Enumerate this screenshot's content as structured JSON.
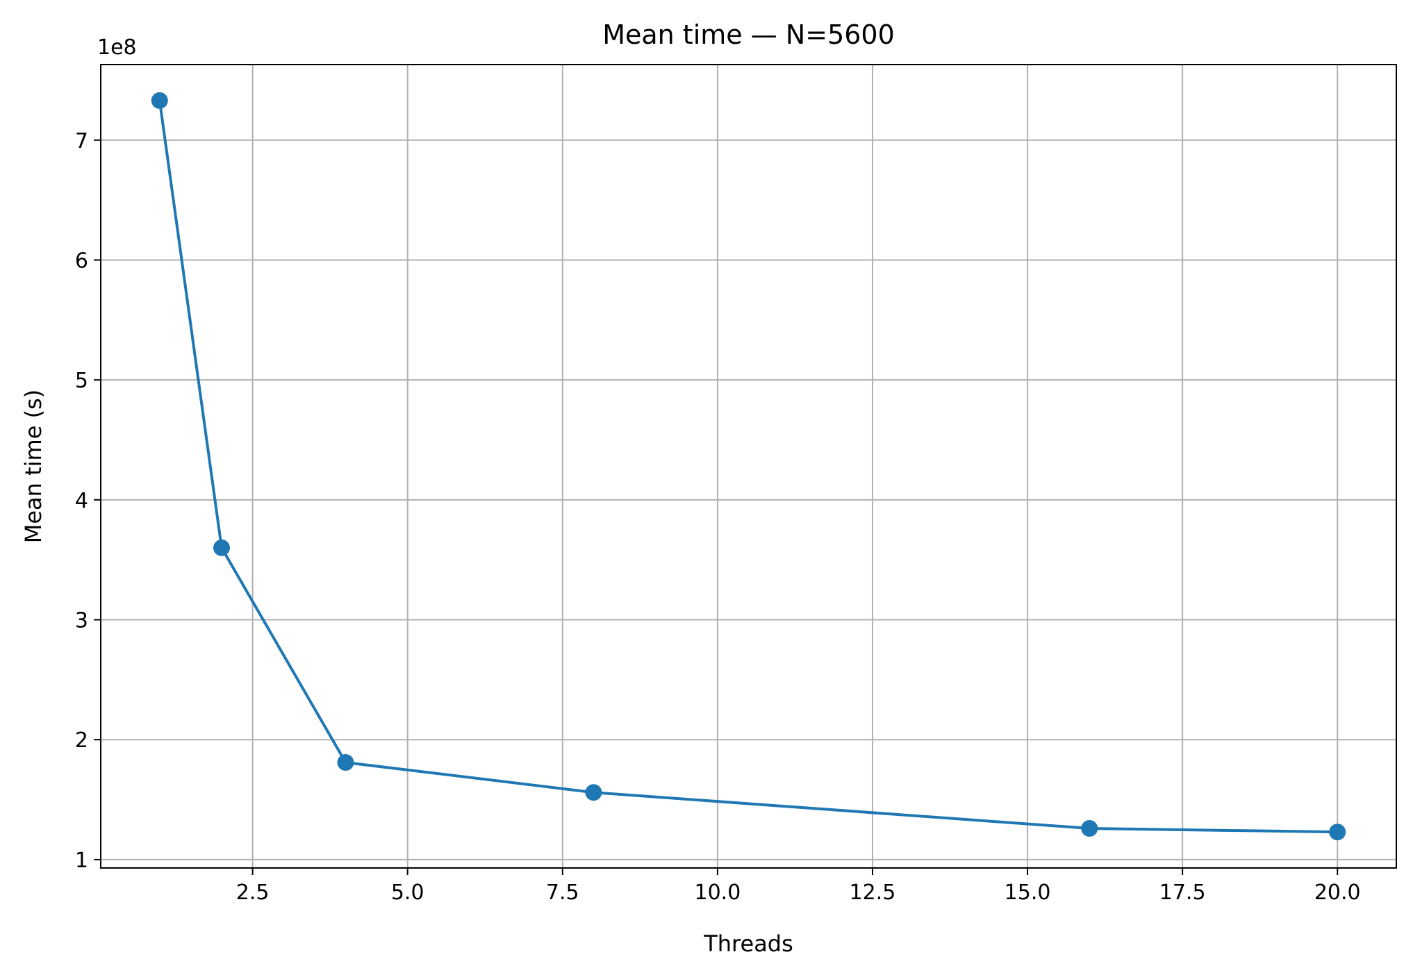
{
  "chart_data": {
    "type": "line",
    "title": "Mean time — N=5600",
    "xlabel": "Threads",
    "ylabel": "Mean time (s)",
    "y_offset_label": "1e8",
    "x": [
      1,
      2,
      4,
      8,
      16,
      20
    ],
    "series": [
      {
        "values": [
          733000000,
          360000000,
          181000000,
          156000000,
          126000000,
          123000000
        ]
      }
    ],
    "xlim": [
      0.05,
      20.95
    ],
    "ylim": [
      93000000,
      763000000
    ],
    "x_ticks": [
      2.5,
      5.0,
      7.5,
      10.0,
      12.5,
      15.0,
      17.5,
      20.0
    ],
    "x_tick_labels": [
      "2.5",
      "5.0",
      "7.5",
      "10.0",
      "12.5",
      "15.0",
      "17.5",
      "20.0"
    ],
    "y_ticks": [
      100000000,
      200000000,
      300000000,
      400000000,
      500000000,
      600000000,
      700000000
    ],
    "y_tick_labels": [
      "1",
      "2",
      "3",
      "4",
      "5",
      "6",
      "7"
    ],
    "grid": true,
    "line_color": "#1f77b4",
    "grid_color": "#b0b0b0"
  }
}
